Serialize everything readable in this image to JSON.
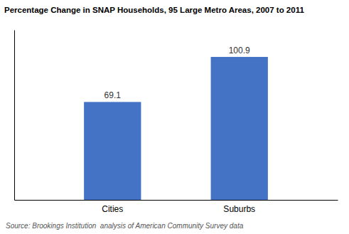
{
  "chart_data": {
    "type": "bar",
    "title": "Percentage Change in SNAP Households, 95 Large Metro Areas, 2007 to 2011",
    "categories": [
      "Cities",
      "Suburbs"
    ],
    "values": [
      69.1,
      100.9
    ],
    "color": "#4472C4",
    "ylim": [
      0,
      120
    ],
    "data_labels": true,
    "tick_labels": "x",
    "annotations": [
      "Source: Brookings Institution  analysis of American Community Survey data"
    ]
  }
}
